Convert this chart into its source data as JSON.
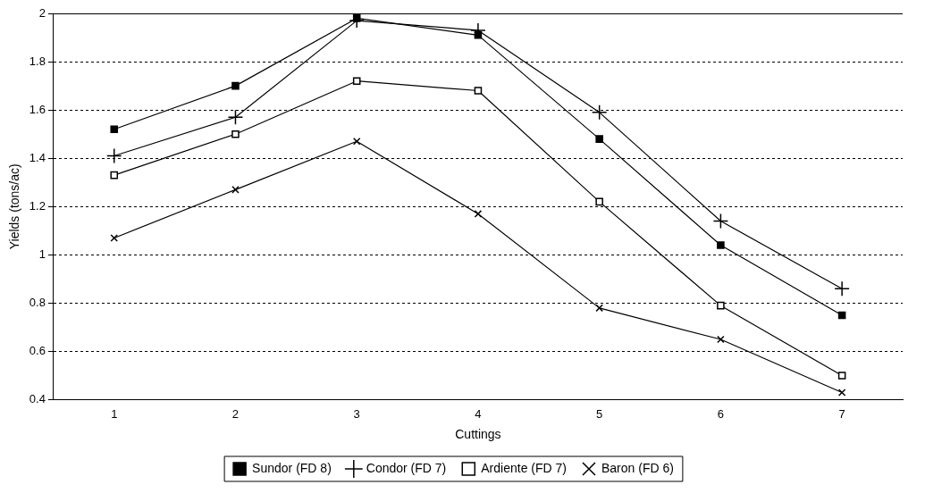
{
  "chart_data": {
    "type": "line",
    "xlabel": "Cuttings",
    "ylabel": "Yields (tons/ac)",
    "categories": [
      "1",
      "2",
      "3",
      "4",
      "5",
      "6",
      "7"
    ],
    "ylim": [
      0.4,
      2
    ],
    "yticks": [
      0.4,
      0.6,
      0.8,
      1,
      1.2,
      1.4,
      1.6,
      1.8,
      2
    ],
    "grid": "y",
    "legend": "bottom",
    "line_style": "solid",
    "series": [
      {
        "name": "Sundor (FD 8)",
        "color": "#000000",
        "marker": "square",
        "values": [
          1.52,
          1.7,
          1.98,
          1.91,
          1.48,
          1.04,
          0.75
        ]
      },
      {
        "name": "Condor (FD 7)",
        "color": "#000000",
        "marker": "cross",
        "values": [
          1.41,
          1.57,
          1.97,
          1.93,
          1.59,
          1.14,
          0.86
        ]
      },
      {
        "name": "Ardiente (FD 7)",
        "color": "#000000",
        "marker": "square-open",
        "values": [
          1.33,
          1.5,
          1.72,
          1.68,
          1.22,
          0.79,
          0.5
        ]
      },
      {
        "name": "Baron (FD 6)",
        "color": "#000000",
        "marker": "x",
        "values": [
          1.07,
          1.27,
          1.47,
          1.17,
          0.78,
          0.65,
          0.43
        ]
      }
    ]
  }
}
